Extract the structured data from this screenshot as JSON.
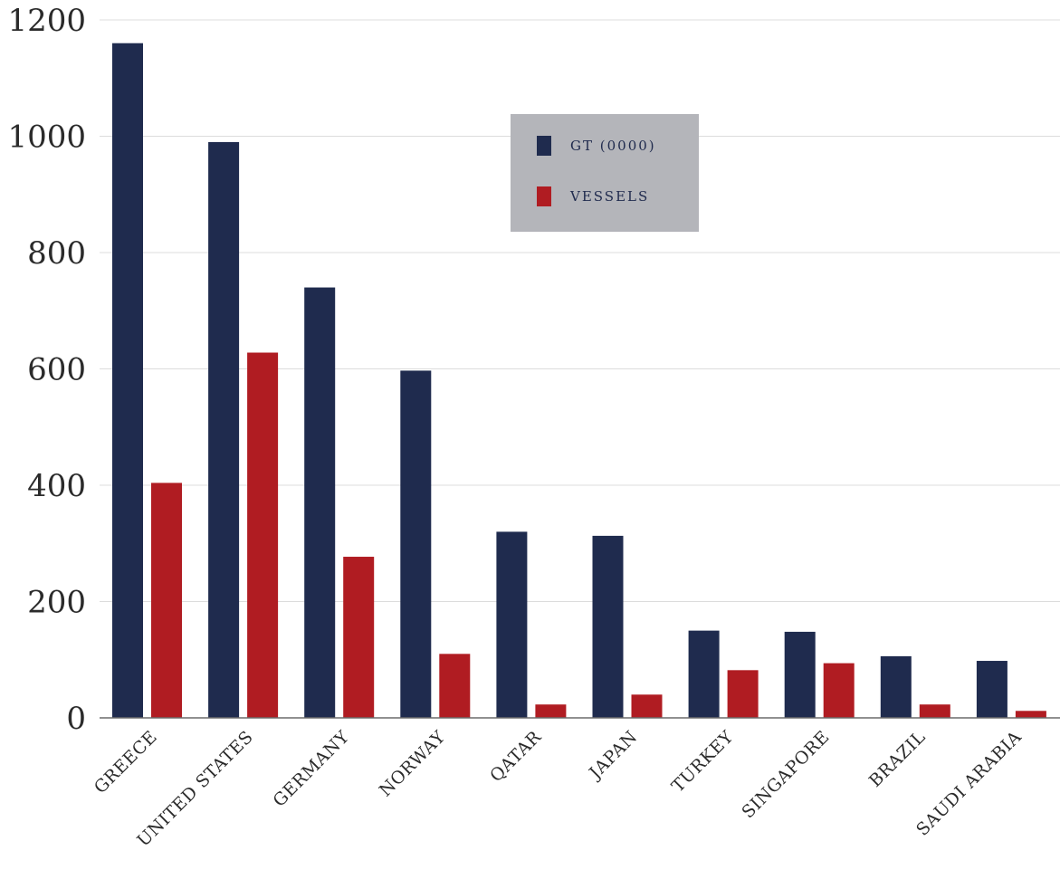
{
  "chart_data": {
    "type": "bar",
    "categories": [
      "GREECE",
      "UNITED STATES",
      "GERMANY",
      "NORWAY",
      "QATAR",
      "JAPAN",
      "TURKEY",
      "SINGAPORE",
      "BRAZIL",
      "SAUDI ARABIA"
    ],
    "series": [
      {
        "name": "GT (0000)",
        "color": "#1f2b4e",
        "values": [
          1160,
          990,
          740,
          597,
          320,
          313,
          150,
          148,
          106,
          98
        ]
      },
      {
        "name": "VESSELS",
        "color": "#b01c22",
        "values": [
          404,
          628,
          277,
          110,
          23,
          40,
          82,
          94,
          23,
          12
        ]
      }
    ],
    "yticks": [
      "0",
      "200",
      "400",
      "600",
      "800",
      "1000",
      "1200"
    ],
    "ylim": [
      0,
      1200
    ],
    "grid": true,
    "legend": {
      "position": "top-center",
      "background": "#b4b5ba",
      "items": [
        "GT (0000)",
        "VESSELS"
      ]
    }
  }
}
